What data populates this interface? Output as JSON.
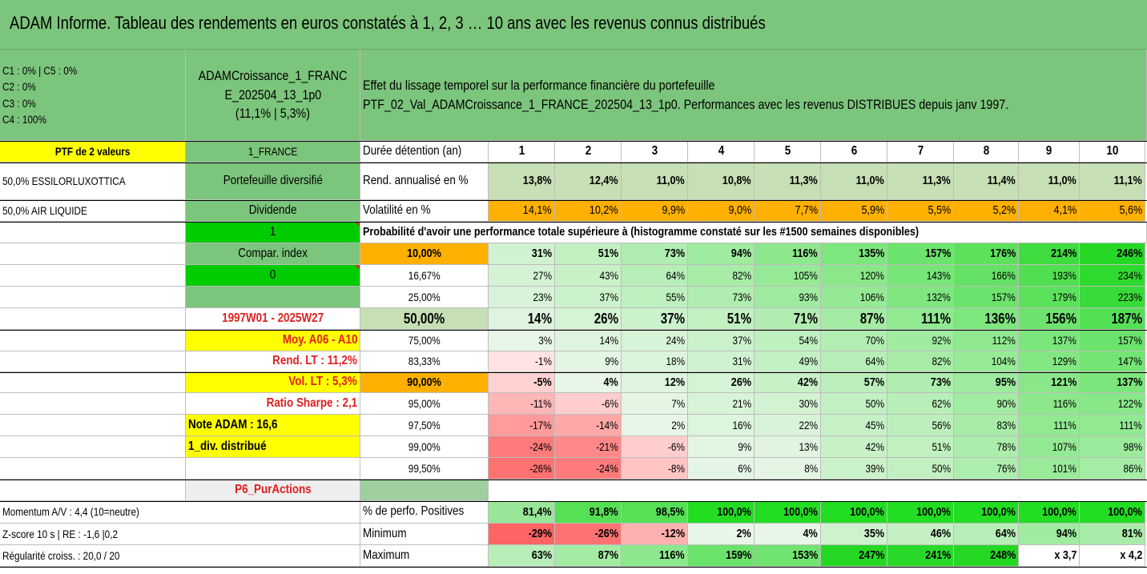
{
  "title": "ADAM Informe. Tableau des rendements en euros constatés à 1, 2, 3 … 10 ans avec les revenus connus distribués",
  "composition": [
    "C1 : 0% | C5 : 0%",
    "C2 : 0%",
    "C3 : 0%",
    "C4 : 100%"
  ],
  "pie": {
    "label": "C4 : 100%",
    "color": "#ff0000",
    "value": 1.0
  },
  "portfolio_name": [
    "ADAMCroissance_1_FRANC",
    "E_202504_13_1p0",
    "(11,1% | 5,3%)"
  ],
  "description": [
    "Effet du lissage temporel sur la performance financière du portefeuille",
    "PTF_02_Val_ADAMCroissance_1_FRANCE_202504_13_1p0. Performances avec les revenus DISTRIBUES depuis janv 1997."
  ],
  "left_column": {
    "ptf_label": "PTF de 2 valeurs",
    "holding_1": "50,0% ESSILORLUXOTTICA",
    "holding_2": "50,0% AIR LIQUIDE",
    "momentum": "Momentum A/V : 4,4 (10=neutre)",
    "zscore": "Z-score 10 s | RE : -1,6 |0,2",
    "regularite": "Régularité croiss. : 20,0 / 20"
  },
  "info_column": {
    "country": "1_FRANCE",
    "type": "Portefeuille diversifié",
    "dividende_label": "Dividende",
    "dividende_value": "1",
    "compar_label": "Compar. index",
    "compar_value": "0",
    "period": "1997W01 - 2025W27",
    "moy": "Moy. A06 - A10",
    "rend_lt": "Rend. LT : 11,2%",
    "vol_lt": "Vol. LT : 5,3%",
    "sharpe": "Ratio Sharpe : 2,1",
    "note": "Note ADAM : 16,6",
    "div": "1_div. distribué",
    "purs": "P6_PurActions"
  },
  "table": {
    "header_label": "Durée détention (an)",
    "years": [
      "1",
      "2",
      "3",
      "4",
      "5",
      "6",
      "7",
      "8",
      "9",
      "10"
    ],
    "rend_label": "Rend. annualisé en %",
    "rend": [
      "13,8%",
      "12,4%",
      "11,0%",
      "10,8%",
      "11,3%",
      "11,0%",
      "11,3%",
      "11,4%",
      "11,0%",
      "11,1%"
    ],
    "vol_label": "Volatilité en %",
    "vol": [
      "14,1%",
      "10,2%",
      "9,9%",
      "9,0%",
      "7,7%",
      "5,9%",
      "5,5%",
      "5,2%",
      "4,1%",
      "5,6%"
    ],
    "prob_title": "Probabilité d'avoir une performance totale supérieure à (histogramme constaté sur les #1500 semaines disponibles)",
    "prob_rows": [
      {
        "label": "10,00%",
        "values": [
          "31%",
          "51%",
          "73%",
          "94%",
          "116%",
          "135%",
          "157%",
          "176%",
          "214%",
          "246%"
        ]
      },
      {
        "label": "16,67%",
        "values": [
          "27%",
          "43%",
          "64%",
          "82%",
          "105%",
          "120%",
          "143%",
          "166%",
          "193%",
          "234%"
        ]
      },
      {
        "label": "25,00%",
        "values": [
          "23%",
          "37%",
          "55%",
          "73%",
          "93%",
          "106%",
          "132%",
          "157%",
          "179%",
          "223%"
        ]
      },
      {
        "label": "50,00%",
        "values": [
          "14%",
          "26%",
          "37%",
          "51%",
          "71%",
          "87%",
          "111%",
          "136%",
          "156%",
          "187%"
        ]
      },
      {
        "label": "75,00%",
        "values": [
          "3%",
          "14%",
          "24%",
          "37%",
          "54%",
          "70%",
          "92%",
          "112%",
          "137%",
          "157%"
        ]
      },
      {
        "label": "83,33%",
        "values": [
          "-1%",
          "9%",
          "18%",
          "31%",
          "49%",
          "64%",
          "82%",
          "104%",
          "129%",
          "147%"
        ]
      },
      {
        "label": "90,00%",
        "values": [
          "-5%",
          "4%",
          "12%",
          "26%",
          "42%",
          "57%",
          "73%",
          "95%",
          "121%",
          "137%"
        ]
      },
      {
        "label": "95,00%",
        "values": [
          "-11%",
          "-6%",
          "7%",
          "21%",
          "30%",
          "50%",
          "62%",
          "90%",
          "116%",
          "122%"
        ]
      },
      {
        "label": "97,50%",
        "values": [
          "-17%",
          "-14%",
          "2%",
          "16%",
          "22%",
          "45%",
          "56%",
          "83%",
          "111%",
          "111%"
        ]
      },
      {
        "label": "99,00%",
        "values": [
          "-24%",
          "-21%",
          "-6%",
          "9%",
          "13%",
          "42%",
          "51%",
          "78%",
          "107%",
          "98%"
        ]
      },
      {
        "label": "99,50%",
        "values": [
          "-26%",
          "-24%",
          "-8%",
          "6%",
          "8%",
          "39%",
          "50%",
          "76%",
          "101%",
          "86%"
        ]
      }
    ],
    "pos_label": "% de perfo. Positives",
    "pos": [
      "81,4%",
      "91,8%",
      "98,5%",
      "100,0%",
      "100,0%",
      "100,0%",
      "100,0%",
      "100,0%",
      "100,0%",
      "100,0%"
    ],
    "min_label": "Minimum",
    "min": [
      "-29%",
      "-26%",
      "-12%",
      "2%",
      "4%",
      "35%",
      "46%",
      "64%",
      "94%",
      "81%"
    ],
    "max_label": "Maximum",
    "max": [
      "63%",
      "87%",
      "116%",
      "159%",
      "153%",
      "247%",
      "241%",
      "248%",
      "x 3,7",
      "x 4,2"
    ]
  },
  "colors": {
    "title_green": "#7cc57c",
    "yellow": "#ffff00",
    "bright_green": "#00cc00",
    "orange": "#ffb000",
    "pale_green": "#c6dfb4",
    "gray": "#eeeeee",
    "red_text": "#e02020"
  }
}
